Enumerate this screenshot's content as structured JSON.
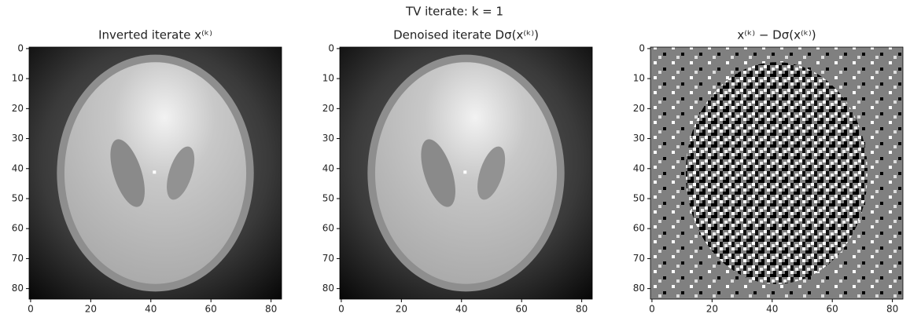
{
  "title": "TV iterate: k = 1",
  "chart_data": [
    {
      "type": "image",
      "title": "Inverted iterate x⁽ᵏ⁾",
      "xlim": [
        -0.5,
        83.5
      ],
      "ylim": [
        83.5,
        -0.5
      ],
      "xticks": [
        0,
        20,
        40,
        60,
        80
      ],
      "yticks": [
        0,
        10,
        20,
        30,
        40,
        50,
        60,
        70,
        80
      ]
    },
    {
      "type": "image",
      "title": "Denoised iterate Dσ(x⁽ᵏ⁾)",
      "xlim": [
        -0.5,
        83.5
      ],
      "ylim": [
        83.5,
        -0.5
      ],
      "xticks": [
        0,
        20,
        40,
        60,
        80
      ],
      "yticks": [
        0,
        10,
        20,
        30,
        40,
        50,
        60,
        70,
        80
      ]
    },
    {
      "type": "residual",
      "title": "x⁽ᵏ⁾ − Dσ(x⁽ᵏ⁾)",
      "xlim": [
        -0.5,
        83.5
      ],
      "ylim": [
        83.5,
        -0.5
      ],
      "xticks": [
        0,
        20,
        40,
        60,
        80
      ],
      "yticks": [
        0,
        10,
        20,
        30,
        40,
        50,
        60,
        70,
        80
      ]
    }
  ]
}
